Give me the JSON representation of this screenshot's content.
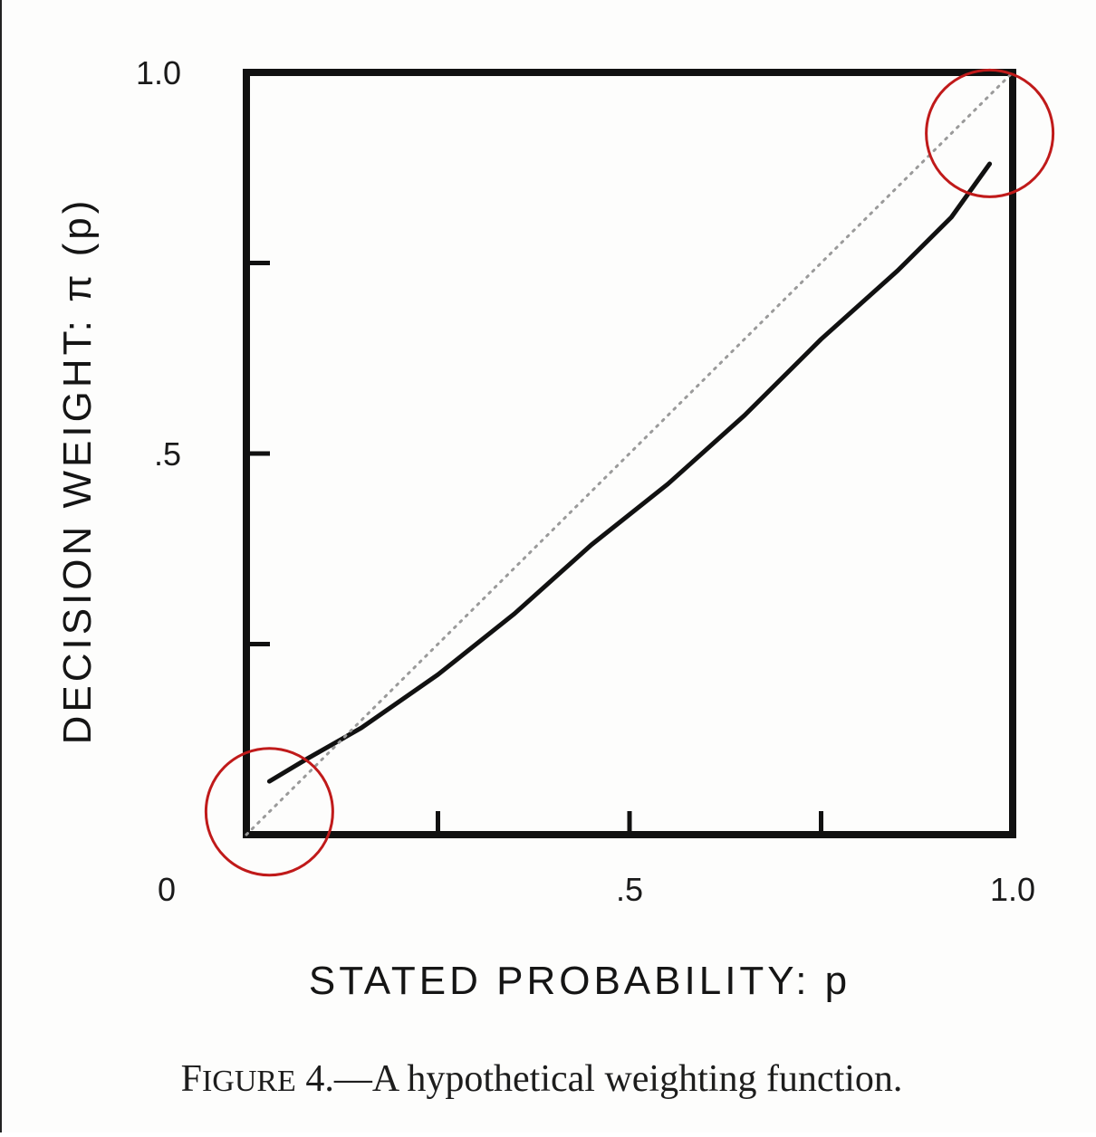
{
  "chart_data": {
    "type": "line",
    "title": "",
    "xlabel": "STATED PROBABILITY: p",
    "ylabel": "DECISION WEIGHT: π (p)",
    "xlim": [
      0,
      1
    ],
    "ylim": [
      0,
      1
    ],
    "grid": false,
    "x_ticks": [
      0,
      0.25,
      0.5,
      0.75,
      1.0
    ],
    "y_ticks": [
      0,
      0.25,
      0.5,
      0.75,
      1.0
    ],
    "x_tick_labels": [
      {
        "value": 0,
        "label": "0"
      },
      {
        "value": 0.5,
        "label": ".5"
      },
      {
        "value": 1.0,
        "label": "1.0"
      }
    ],
    "y_tick_labels": [
      {
        "value": 0.5,
        "label": ".5"
      },
      {
        "value": 1.0,
        "label": "1.0"
      }
    ],
    "series": [
      {
        "style": "solid",
        "color": "#111111",
        "x": [
          0.03,
          0.08,
          0.15,
          0.25,
          0.35,
          0.45,
          0.55,
          0.65,
          0.75,
          0.85,
          0.92,
          0.97
        ],
        "y": [
          0.07,
          0.1,
          0.14,
          0.21,
          0.29,
          0.38,
          0.46,
          0.55,
          0.65,
          0.74,
          0.81,
          0.88
        ]
      },
      {
        "style": "dotted",
        "color": "#9a9a9a",
        "x": [
          0.0,
          1.0
        ],
        "y": [
          0.0,
          1.0
        ]
      }
    ],
    "annotations": [
      {
        "type": "circle",
        "color": "#c01a1a",
        "x": 0.03,
        "y": 0.03
      },
      {
        "type": "circle",
        "color": "#c01a1a",
        "x": 0.97,
        "y": 0.92
      }
    ]
  },
  "caption": {
    "figure_label_prefix": "F",
    "figure_label_rest": "IGURE",
    "text": " 4.—A hypothetical weighting function."
  }
}
